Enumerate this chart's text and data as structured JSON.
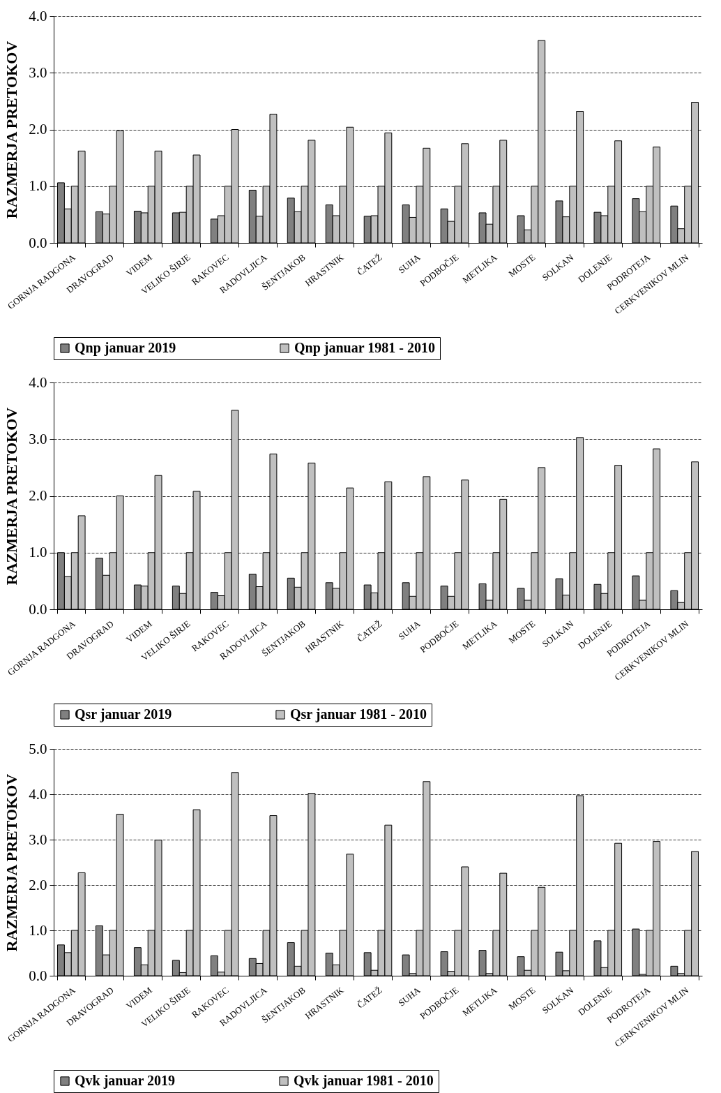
{
  "chart_data": [
    {
      "type": "bar",
      "ylabel": "RAZMERJA PRETOKOV",
      "categories": [
        "GORNJA RADGONA",
        "DRAVOGRAD",
        "VIDEM",
        "VELIKO ŠIRJE",
        "RAKOVEC",
        "RADOVLJICA",
        "ŠENTJAKOB",
        "HRASTNIK",
        "ČATEŽ",
        "SUHA",
        "PODBOČJE",
        "METLIKA",
        "MOSTE",
        "SOLKAN",
        "DOLENJE",
        "PODROTEJA",
        "CERKVENIKOV MLIN"
      ],
      "series": [
        {
          "name": "Qnp  januar 2019",
          "color": "#808080",
          "values": [
            1.06,
            0.55,
            0.56,
            0.53,
            0.42,
            0.93,
            0.79,
            0.67,
            0.47,
            0.67,
            0.6,
            0.53,
            0.48,
            0.74,
            0.54,
            0.78,
            0.65
          ]
        },
        {
          "name": "Qnp januar 1981 - 2010",
          "color": "#c0c0c0",
          "values": [
            0.6,
            0.51,
            0.53,
            0.54,
            0.48,
            0.47,
            0.55,
            0.48,
            0.48,
            0.45,
            0.38,
            0.33,
            0.23,
            0.46,
            0.48,
            0.55,
            0.25
          ]
        },
        {
          "color": "#c0c0c0",
          "values": [
            1,
            1,
            1,
            1,
            1,
            1,
            1,
            1,
            1,
            1,
            1,
            1,
            1,
            1,
            1,
            1,
            1
          ]
        },
        {
          "color": "#c0c0c0",
          "values": [
            1.62,
            1.98,
            1.62,
            1.55,
            2.0,
            2.27,
            1.81,
            2.04,
            1.94,
            1.67,
            1.75,
            1.81,
            3.57,
            2.32,
            1.8,
            1.69,
            2.48
          ]
        }
      ],
      "ylim": [
        0,
        4
      ],
      "yticks": [
        {
          "value": 0,
          "label": "0.0"
        },
        {
          "value": 1,
          "label": "1.0"
        },
        {
          "value": 2,
          "label": "2.0"
        },
        {
          "value": 3,
          "label": "3.0"
        },
        {
          "value": 4,
          "label": "4.0"
        }
      ],
      "grid": "y",
      "legend": "bottom"
    },
    {
      "type": "bar",
      "ylabel": "RAZMERJA PRETOKOV",
      "categories": [
        "GORNJA RADGONA",
        "DRAVOGRAD",
        "VIDEM",
        "VELIKO ŠIRJE",
        "RAKOVEC",
        "RADOVLJICA",
        "ŠENTJAKOB",
        "HRASTNIK",
        "ČATEŽ",
        "SUHA",
        "PODBOČJE",
        "METLIKA",
        "MOSTE",
        "SOLKAN",
        "DOLENJE",
        "PODROTEJA",
        "CERKVENIKOV MLIN"
      ],
      "series": [
        {
          "name": "Qsr  januar 2019",
          "color": "#808080",
          "values": [
            1.0,
            0.9,
            0.43,
            0.41,
            0.3,
            0.62,
            0.55,
            0.47,
            0.43,
            0.47,
            0.41,
            0.45,
            0.37,
            0.54,
            0.44,
            0.59,
            0.33
          ]
        },
        {
          "name": "Qsr januar 1981 - 2010",
          "color": "#c0c0c0",
          "values": [
            0.58,
            0.6,
            0.41,
            0.28,
            0.24,
            0.4,
            0.39,
            0.37,
            0.29,
            0.23,
            0.23,
            0.16,
            0.16,
            0.25,
            0.28,
            0.16,
            0.12
          ]
        },
        {
          "color": "#c0c0c0",
          "values": [
            1,
            1,
            1,
            1,
            1,
            1,
            1,
            1,
            1,
            1,
            1,
            1,
            1,
            1,
            1,
            1,
            1
          ]
        },
        {
          "color": "#c0c0c0",
          "values": [
            1.65,
            2.0,
            2.36,
            2.08,
            3.51,
            2.74,
            2.58,
            2.14,
            2.25,
            2.34,
            2.28,
            1.94,
            2.5,
            3.03,
            2.54,
            2.83,
            2.6
          ]
        }
      ],
      "ylim": [
        0,
        4
      ],
      "yticks": [
        {
          "value": 0,
          "label": "0.0"
        },
        {
          "value": 1,
          "label": "1.0"
        },
        {
          "value": 2,
          "label": "2.0"
        },
        {
          "value": 3,
          "label": "3.0"
        },
        {
          "value": 4,
          "label": "4.0"
        }
      ],
      "grid": "y",
      "legend": "bottom"
    },
    {
      "type": "bar",
      "ylabel": "RAZMERJA PRETOKOV",
      "categories": [
        "GORNJA RADGONA",
        "DRAVOGRAD",
        "VIDEM",
        "VELIKO ŠIRJE",
        "RAKOVEC",
        "RADOVLJICA",
        "ŠENTJAKOB",
        "HRASTNIK",
        "ČATEŽ",
        "SUHA",
        "PODBOČJE",
        "METLIKA",
        "MOSTE",
        "SOLKAN",
        "DOLENJE",
        "PODROTEJA",
        "CERKVENIKOV MLIN"
      ],
      "series": [
        {
          "name": "Qvk  januar 2019",
          "color": "#808080",
          "values": [
            0.68,
            1.1,
            0.62,
            0.34,
            0.44,
            0.38,
            0.73,
            0.5,
            0.51,
            0.46,
            0.53,
            0.56,
            0.42,
            0.52,
            0.77,
            1.03,
            0.21
          ]
        },
        {
          "name": "Qvk januar 1981 - 2010",
          "color": "#c0c0c0",
          "values": [
            0.51,
            0.46,
            0.24,
            0.07,
            0.08,
            0.27,
            0.21,
            0.24,
            0.12,
            0.05,
            0.1,
            0.05,
            0.12,
            0.11,
            0.18,
            0.03,
            0.05
          ]
        },
        {
          "color": "#c0c0c0",
          "values": [
            1,
            1,
            1,
            1,
            1,
            1,
            1,
            1,
            1,
            1,
            1,
            1,
            1,
            1,
            1,
            1,
            1
          ]
        },
        {
          "color": "#c0c0c0",
          "values": [
            2.27,
            3.56,
            2.99,
            3.66,
            4.48,
            3.53,
            4.02,
            2.68,
            3.32,
            4.28,
            2.4,
            2.26,
            1.95,
            3.97,
            2.92,
            2.96,
            2.74
          ]
        }
      ],
      "ylim": [
        0,
        5
      ],
      "yticks": [
        {
          "value": 0,
          "label": "0.0"
        },
        {
          "value": 1,
          "label": "1.0"
        },
        {
          "value": 2,
          "label": "2.0"
        },
        {
          "value": 3,
          "label": "3.0"
        },
        {
          "value": 4,
          "label": "4.0"
        },
        {
          "value": 5,
          "label": "5.0"
        }
      ],
      "grid": "y",
      "legend": "bottom"
    }
  ]
}
